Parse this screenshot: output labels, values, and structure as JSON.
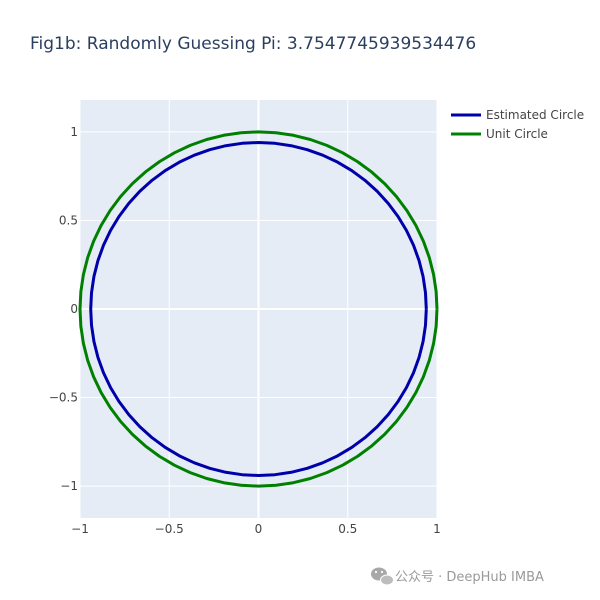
{
  "chart_data": {
    "type": "line",
    "title": "Fig1b: Randomly Guessing Pi: 3.7547745939534476",
    "xlabel": "",
    "ylabel": "",
    "xlim": [
      -1,
      1
    ],
    "ylim": [
      -1.18,
      1.18
    ],
    "x_ticks": [
      -1,
      -0.5,
      0,
      0.5,
      1
    ],
    "x_tick_labels": [
      "−1",
      "−0.5",
      "0",
      "0.5",
      "1"
    ],
    "y_ticks": [
      -1,
      -0.5,
      0,
      0.5,
      1
    ],
    "y_tick_labels": [
      "−1",
      "−0.5",
      "0",
      "0.5",
      "1"
    ],
    "grid": true,
    "legend_placement": "top-right",
    "series": [
      {
        "name": "Estimated Circle",
        "shape": "circle",
        "center": [
          0,
          0
        ],
        "radius": 0.94,
        "color": "#0000aa"
      },
      {
        "name": "Unit Circle",
        "shape": "circle",
        "center": [
          0,
          0
        ],
        "radius": 1.0,
        "color": "#008000"
      }
    ]
  },
  "colors": {
    "plot_background": "#e5ecf6",
    "grid": "#ffffff",
    "title": "#2a3f5f",
    "tick_text": "#444444"
  },
  "watermark": {
    "text": "公众号 · DeepHub IMBA",
    "icon": "wechat-icon"
  }
}
